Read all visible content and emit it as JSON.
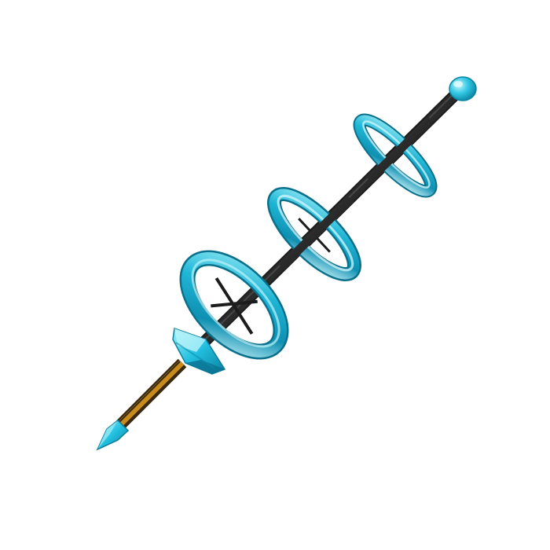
{
  "item": {
    "kind": "3d-item-render",
    "colors": {
      "background": "#ffffff",
      "accent": "#1fb6d6",
      "accent_light": "#7fe3f0",
      "accent_dark": "#0e7e9a",
      "rod": "#2e2e2e",
      "grip": "#c98a1c",
      "grip_stripe": "#3a2a12"
    },
    "parts": [
      "tip-orb-icon",
      "spear-point-icon",
      "ring-icon",
      "shaft-icon",
      "grip-icon",
      "guard-icon",
      "pommel-icon"
    ]
  }
}
